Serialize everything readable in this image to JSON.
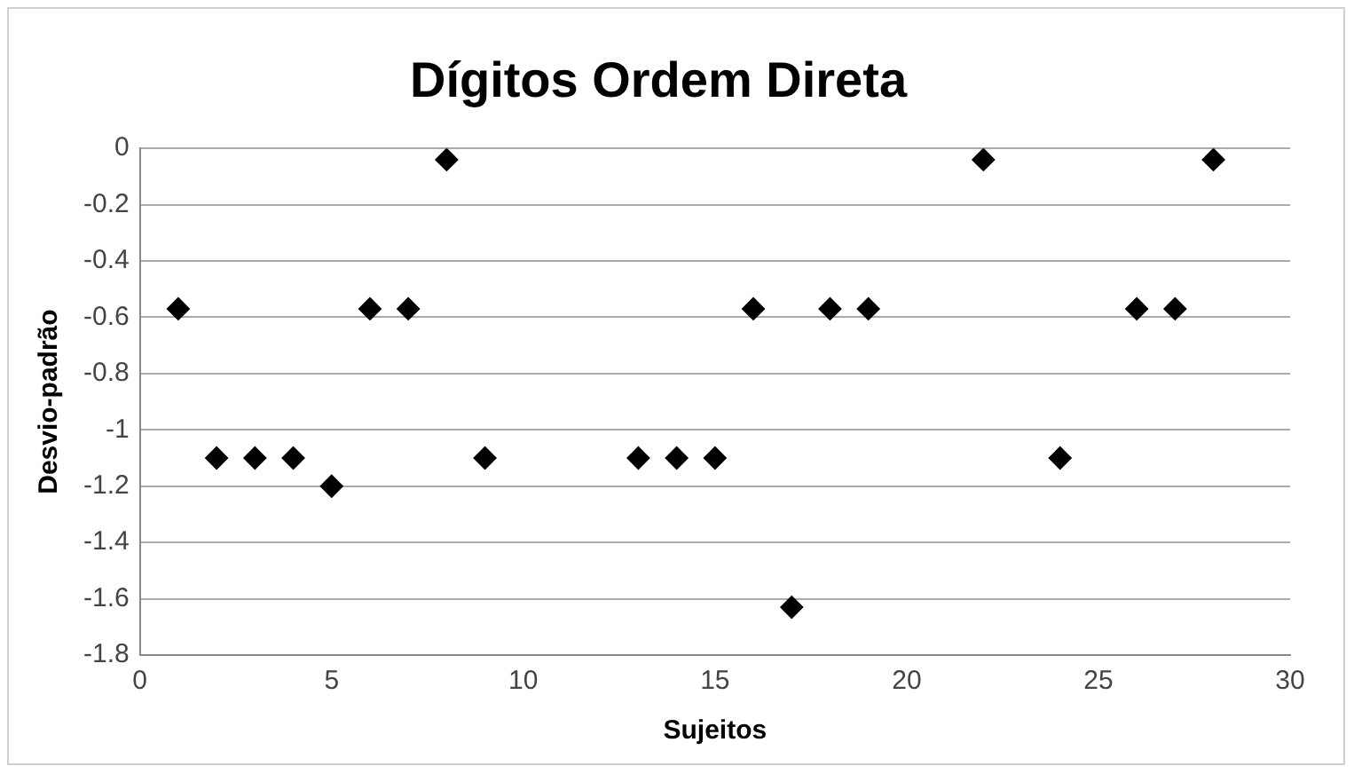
{
  "chart_data": {
    "type": "scatter",
    "title": "Dígitos Ordem Direta",
    "xlabel": "Sujeitos",
    "ylabel": "Desvio-padrão",
    "x": [
      1,
      2,
      3,
      4,
      5,
      6,
      7,
      8,
      9,
      13,
      14,
      15,
      16,
      17,
      18,
      19,
      22,
      24,
      26,
      27,
      28
    ],
    "series": [
      {
        "color": "#000000",
        "values": [
          -0.57,
          -1.1,
          -1.1,
          -1.1,
          -1.2,
          -0.57,
          -0.57,
          -0.04,
          -1.1,
          -1.1,
          -1.1,
          -1.1,
          -0.57,
          -1.63,
          -0.57,
          -0.57,
          -0.04,
          -1.1,
          -0.57,
          -0.57,
          -0.04
        ]
      }
    ],
    "xlim": [
      0,
      30
    ],
    "xticks": [
      0,
      5,
      10,
      15,
      20,
      25,
      30
    ],
    "ylim": [
      -1.8,
      0
    ],
    "yticks": [
      -1.8,
      -1.6,
      -1.4,
      -1.2,
      -1,
      -0.8,
      -0.6,
      -0.4,
      -0.2,
      0
    ],
    "grid": "y",
    "legend": false,
    "marker": "diamond"
  }
}
